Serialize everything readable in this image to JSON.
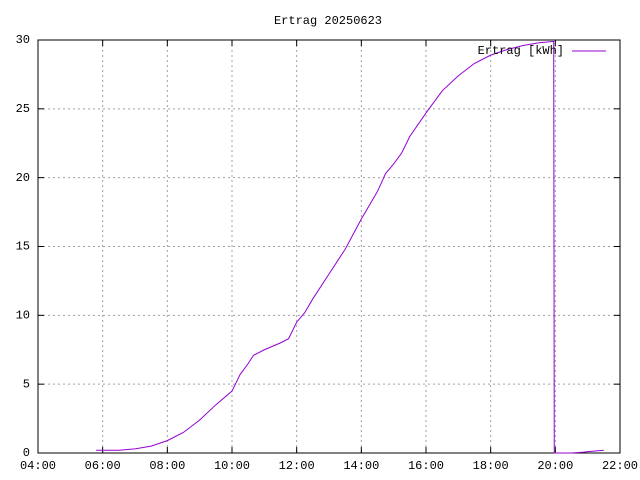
{
  "chart_data": {
    "type": "line",
    "title": "Ertrag 20250623",
    "x": [
      "05:48",
      "06:30",
      "07:00",
      "07:30",
      "08:00",
      "08:30",
      "09:00",
      "09:30",
      "10:00",
      "10:15",
      "10:30",
      "10:40",
      "11:00",
      "11:30",
      "11:45",
      "12:00",
      "12:15",
      "12:30",
      "13:00",
      "13:30",
      "14:00",
      "14:30",
      "14:45",
      "15:00",
      "15:15",
      "15:30",
      "16:00",
      "16:30",
      "17:00",
      "17:30",
      "18:00",
      "18:30",
      "19:00",
      "19:30",
      "19:57",
      "19:58",
      "20:30",
      "20:50",
      "21:00",
      "21:30"
    ],
    "series": [
      {
        "name": "Ertrag [kWh]",
        "color": "#9400d3",
        "values": [
          0.2,
          0.2,
          0.3,
          0.5,
          0.9,
          1.5,
          2.4,
          3.5,
          4.5,
          5.7,
          6.5,
          7.1,
          7.5,
          8.0,
          8.3,
          9.5,
          10.2,
          11.2,
          13.0,
          14.8,
          17.0,
          19.0,
          20.3,
          21.0,
          21.8,
          23.0,
          24.7,
          26.3,
          27.4,
          28.3,
          28.9,
          29.3,
          29.6,
          29.8,
          29.9,
          0.0,
          0.0,
          0.05,
          0.1,
          0.2
        ]
      }
    ],
    "xlim": [
      "04:00",
      "22:00"
    ],
    "xticks": [
      "04:00",
      "06:00",
      "08:00",
      "10:00",
      "12:00",
      "14:00",
      "16:00",
      "18:00",
      "20:00",
      "22:00"
    ],
    "ylim": [
      0,
      30
    ],
    "yticks": [
      0,
      5,
      10,
      15,
      20,
      25,
      30
    ],
    "grid": true,
    "legend": "top-right"
  }
}
